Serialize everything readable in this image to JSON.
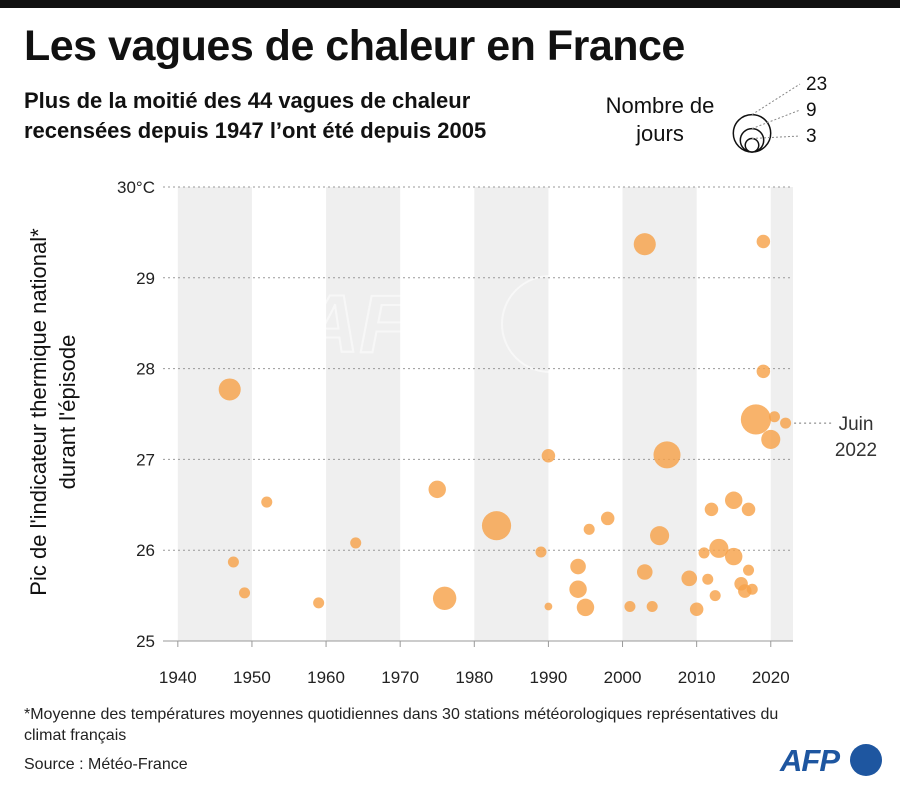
{
  "title": "Les vagues de chaleur en France",
  "subtitle": "Plus de la moitié des 44 vagues de chaleur recensées depuis 1947 l’ont été depuis 2005",
  "size_legend": {
    "title": "Nombre de jours",
    "values": [
      23,
      9,
      3
    ]
  },
  "annotation": {
    "text_line1": "Juin",
    "text_line2": "2022",
    "x": 2022,
    "y": 27.4
  },
  "footnote": "*Moyenne des températures moyennes quotidiennes dans 30 stations météorologiques représentatives du climat français",
  "source": "Source : Météo-France",
  "logo": "AFP",
  "watermark": "AFP",
  "colors": {
    "bubble": "#f7a24a",
    "band": "#efefef",
    "grid": "#9a9a9a",
    "logo": "#1e56a0"
  },
  "chart_data": {
    "type": "scatter",
    "encoding": "bubble",
    "ylabel_line1": "Pic de l'indicateur thermique national*",
    "ylabel_line2": "durant l'épisode",
    "xlabel": "",
    "xlim": [
      1938,
      2023
    ],
    "ylim": [
      25,
      30
    ],
    "xticks": [
      1940,
      1950,
      1960,
      1970,
      1980,
      1990,
      2000,
      2010,
      2020
    ],
    "yticks": [
      25,
      26,
      27,
      28,
      29,
      30
    ],
    "ytick_labels": [
      "25",
      "26",
      "27",
      "28",
      "29",
      "30°C"
    ],
    "size_label": "Nombre de jours",
    "points": [
      {
        "x": 1947.0,
        "y": 27.77,
        "days": 8
      },
      {
        "x": 1947.5,
        "y": 25.87,
        "days": 2
      },
      {
        "x": 1949.0,
        "y": 25.53,
        "days": 2
      },
      {
        "x": 1952.0,
        "y": 26.53,
        "days": 2
      },
      {
        "x": 1959.0,
        "y": 25.42,
        "days": 2
      },
      {
        "x": 1964.0,
        "y": 26.08,
        "days": 2
      },
      {
        "x": 1975.0,
        "y": 26.67,
        "days": 5
      },
      {
        "x": 1976.0,
        "y": 25.47,
        "days": 9
      },
      {
        "x": 1983.0,
        "y": 26.27,
        "days": 14
      },
      {
        "x": 1989.0,
        "y": 25.98,
        "days": 2
      },
      {
        "x": 1990.0,
        "y": 27.04,
        "days": 3
      },
      {
        "x": 1990.0,
        "y": 25.38,
        "days": 1
      },
      {
        "x": 1994.0,
        "y": 25.82,
        "days": 4
      },
      {
        "x": 1994.0,
        "y": 25.57,
        "days": 5
      },
      {
        "x": 1995.0,
        "y": 25.37,
        "days": 5
      },
      {
        "x": 1995.5,
        "y": 26.23,
        "days": 2
      },
      {
        "x": 1998.0,
        "y": 26.35,
        "days": 3
      },
      {
        "x": 2001.0,
        "y": 25.38,
        "days": 2
      },
      {
        "x": 2003.0,
        "y": 29.37,
        "days": 8
      },
      {
        "x": 2003.0,
        "y": 25.76,
        "days": 4
      },
      {
        "x": 2004.0,
        "y": 25.38,
        "days": 2
      },
      {
        "x": 2005.0,
        "y": 26.16,
        "days": 6
      },
      {
        "x": 2006.0,
        "y": 27.05,
        "days": 12
      },
      {
        "x": 2009.0,
        "y": 25.69,
        "days": 4
      },
      {
        "x": 2010.0,
        "y": 25.35,
        "days": 3
      },
      {
        "x": 2011.0,
        "y": 25.97,
        "days": 2
      },
      {
        "x": 2011.5,
        "y": 25.68,
        "days": 2
      },
      {
        "x": 2012.0,
        "y": 26.45,
        "days": 3
      },
      {
        "x": 2012.5,
        "y": 25.5,
        "days": 2
      },
      {
        "x": 2013.0,
        "y": 26.02,
        "days": 6
      },
      {
        "x": 2015.0,
        "y": 26.55,
        "days": 5
      },
      {
        "x": 2015.0,
        "y": 25.93,
        "days": 5
      },
      {
        "x": 2016.0,
        "y": 25.63,
        "days": 3
      },
      {
        "x": 2016.5,
        "y": 25.55,
        "days": 3
      },
      {
        "x": 2017.0,
        "y": 26.45,
        "days": 3
      },
      {
        "x": 2017.0,
        "y": 25.78,
        "days": 2
      },
      {
        "x": 2017.5,
        "y": 25.57,
        "days": 2
      },
      {
        "x": 2018.0,
        "y": 27.44,
        "days": 15
      },
      {
        "x": 2019.0,
        "y": 29.4,
        "days": 3
      },
      {
        "x": 2019.0,
        "y": 27.97,
        "days": 3
      },
      {
        "x": 2020.0,
        "y": 27.22,
        "days": 6
      },
      {
        "x": 2020.5,
        "y": 27.47,
        "days": 2
      },
      {
        "x": 2022.0,
        "y": 27.4,
        "days": 2
      }
    ]
  }
}
